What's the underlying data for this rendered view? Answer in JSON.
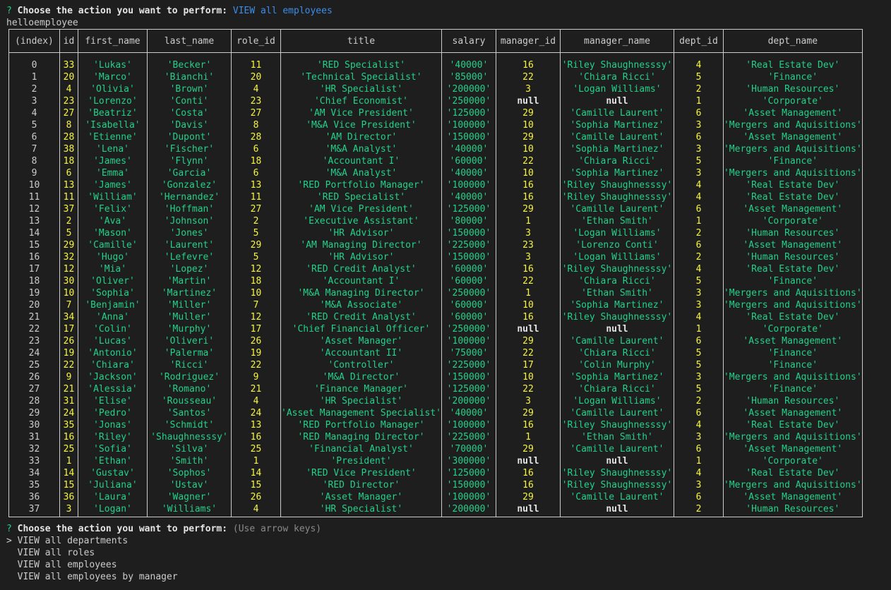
{
  "first_prompt": {
    "mark": "?",
    "question": "Choose the action you want to perform:",
    "answer": "VIEW all employees"
  },
  "log_line": "helloemployee",
  "table": {
    "columns": [
      "(index)",
      "id",
      "first_name",
      "last_name",
      "role_id",
      "title",
      "salary",
      "manager_id",
      "manager_name",
      "dept_id",
      "dept_name"
    ],
    "rows": [
      [
        0,
        33,
        "Lukas",
        "Becker",
        11,
        "RED Specialist",
        "40000",
        16,
        "Riley Shaughnesssy",
        4,
        "Real Estate Dev"
      ],
      [
        1,
        20,
        "Marco",
        "Bianchi",
        20,
        "Technical Specialist",
        "85000",
        22,
        "Chiara Ricci",
        5,
        "Finance"
      ],
      [
        2,
        4,
        "Olivia",
        "Brown",
        4,
        "HR Specialist",
        "200000",
        3,
        "Logan Williams",
        2,
        "Human Resources"
      ],
      [
        3,
        23,
        "Lorenzo",
        "Conti",
        23,
        "Chief Economist",
        "250000",
        null,
        null,
        1,
        "Corporate"
      ],
      [
        4,
        27,
        "Beatriz",
        "Costa",
        27,
        "AM Vice President",
        "125000",
        29,
        "Camille Laurent",
        6,
        "Asset Management"
      ],
      [
        5,
        8,
        "Isabella",
        "Davis",
        8,
        "M&A Vice President",
        "100000",
        10,
        "Sophia Martinez",
        3,
        "Mergers and Aquisitions"
      ],
      [
        6,
        28,
        "Etienne",
        "Dupont",
        28,
        "AM Director",
        "150000",
        29,
        "Camille Laurent",
        6,
        "Asset Management"
      ],
      [
        7,
        38,
        "Lena",
        "Fischer",
        6,
        "M&A Analyst",
        "40000",
        10,
        "Sophia Martinez",
        3,
        "Mergers and Aquisitions"
      ],
      [
        8,
        18,
        "James",
        "Flynn",
        18,
        "Accountant I",
        "60000",
        22,
        "Chiara Ricci",
        5,
        "Finance"
      ],
      [
        9,
        6,
        "Emma",
        "Garcia",
        6,
        "M&A Analyst",
        "40000",
        10,
        "Sophia Martinez",
        3,
        "Mergers and Aquisitions"
      ],
      [
        10,
        13,
        "James",
        "Gonzalez",
        13,
        "RED Portfolio Manager",
        "100000",
        16,
        "Riley Shaughnesssy",
        4,
        "Real Estate Dev"
      ],
      [
        11,
        11,
        "William",
        "Hernandez",
        11,
        "RED Specialist",
        "40000",
        16,
        "Riley Shaughnesssy",
        4,
        "Real Estate Dev"
      ],
      [
        12,
        37,
        "Felix",
        "Hoffman",
        27,
        "AM Vice President",
        "125000",
        29,
        "Camille Laurent",
        6,
        "Asset Management"
      ],
      [
        13,
        2,
        "Ava",
        "Johnson",
        2,
        "Executive Assistant",
        "80000",
        1,
        "Ethan Smith",
        1,
        "Corporate"
      ],
      [
        14,
        5,
        "Mason",
        "Jones",
        5,
        "HR Advisor",
        "150000",
        3,
        "Logan Williams",
        2,
        "Human Resources"
      ],
      [
        15,
        29,
        "Camille",
        "Laurent",
        29,
        "AM Managing Director",
        "225000",
        23,
        "Lorenzo Conti",
        6,
        "Asset Management"
      ],
      [
        16,
        32,
        "Hugo",
        "Lefevre",
        5,
        "HR Advisor",
        "150000",
        3,
        "Logan Williams",
        2,
        "Human Resources"
      ],
      [
        17,
        12,
        "Mia",
        "Lopez",
        12,
        "RED Credit Analyst",
        "60000",
        16,
        "Riley Shaughnesssy",
        4,
        "Real Estate Dev"
      ],
      [
        18,
        30,
        "Oliver",
        "Martin",
        18,
        "Accountant I",
        "60000",
        22,
        "Chiara Ricci",
        5,
        "Finance"
      ],
      [
        19,
        10,
        "Sophia",
        "Martinez",
        10,
        "M&A Managing Director",
        "250000",
        1,
        "Ethan Smith",
        3,
        "Mergers and Aquisitions"
      ],
      [
        20,
        7,
        "Benjamin",
        "Miller",
        7,
        "M&A Associate",
        "60000",
        10,
        "Sophia Martinez",
        3,
        "Mergers and Aquisitions"
      ],
      [
        21,
        34,
        "Anna",
        "Muller",
        12,
        "RED Credit Analyst",
        "60000",
        16,
        "Riley Shaughnesssy",
        4,
        "Real Estate Dev"
      ],
      [
        22,
        17,
        "Colin",
        "Murphy",
        17,
        "Chief Financial Officer",
        "250000",
        null,
        null,
        1,
        "Corporate"
      ],
      [
        23,
        26,
        "Lucas",
        "Oliveri",
        26,
        "Asset Manager",
        "100000",
        29,
        "Camille Laurent",
        6,
        "Asset Management"
      ],
      [
        24,
        19,
        "Antonio",
        "Palerma",
        19,
        "Accountant II",
        "75000",
        22,
        "Chiara Ricci",
        5,
        "Finance"
      ],
      [
        25,
        22,
        "Chiara",
        "Ricci",
        22,
        "Controller",
        "225000",
        17,
        "Colin Murphy",
        5,
        "Finance"
      ],
      [
        26,
        9,
        "Jackson",
        "Rodriguez",
        9,
        "M&A Director",
        "150000",
        10,
        "Sophia Martinez",
        3,
        "Mergers and Aquisitions"
      ],
      [
        27,
        21,
        "Alessia",
        "Romano",
        21,
        "Finance Manager",
        "125000",
        22,
        "Chiara Ricci",
        5,
        "Finance"
      ],
      [
        28,
        31,
        "Elise",
        "Rousseau",
        4,
        "HR Specialist",
        "200000",
        3,
        "Logan Williams",
        2,
        "Human Resources"
      ],
      [
        29,
        24,
        "Pedro",
        "Santos",
        24,
        "Asset Management Specialist",
        "40000",
        29,
        "Camille Laurent",
        6,
        "Asset Management"
      ],
      [
        30,
        35,
        "Jonas",
        "Schmidt",
        13,
        "RED Portfolio Manager",
        "100000",
        16,
        "Riley Shaughnesssy",
        4,
        "Real Estate Dev"
      ],
      [
        31,
        16,
        "Riley",
        "Shaughnesssy",
        16,
        "RED Managing Director",
        "225000",
        1,
        "Ethan Smith",
        3,
        "Mergers and Aquisitions"
      ],
      [
        32,
        25,
        "Sofia",
        "Silva",
        25,
        "Financial Analyst",
        "70000",
        29,
        "Camille Laurent",
        6,
        "Asset Management"
      ],
      [
        33,
        1,
        "Ethan",
        "Smith",
        1,
        "President",
        "300000",
        null,
        null,
        1,
        "Corporate"
      ],
      [
        34,
        14,
        "Gustav",
        "Sophos",
        14,
        "RED Vice President",
        "125000",
        16,
        "Riley Shaughnesssy",
        4,
        "Real Estate Dev"
      ],
      [
        35,
        15,
        "Juliana",
        "Ustav",
        15,
        "RED Director",
        "150000",
        16,
        "Riley Shaughnesssy",
        3,
        "Mergers and Aquisitions"
      ],
      [
        36,
        36,
        "Laura",
        "Wagner",
        26,
        "Asset Manager",
        "100000",
        29,
        "Camille Laurent",
        6,
        "Asset Management"
      ],
      [
        37,
        3,
        "Logan",
        "Williams",
        4,
        "HR Specialist",
        "200000",
        null,
        null,
        2,
        "Human Resources"
      ]
    ]
  },
  "second_prompt": {
    "mark": "?",
    "question": "Choose the action you want to perform:",
    "hint": "(Use arrow keys)",
    "pointer": ">",
    "options": [
      "VIEW all departments",
      "VIEW all roles",
      "VIEW all employees",
      "VIEW all employees by manager"
    ],
    "selected_index": 0
  },
  "colors": {
    "background": "#1e1e1e",
    "number": "#f5f543",
    "string": "#23d18b",
    "selection": "#3b8eea"
  }
}
